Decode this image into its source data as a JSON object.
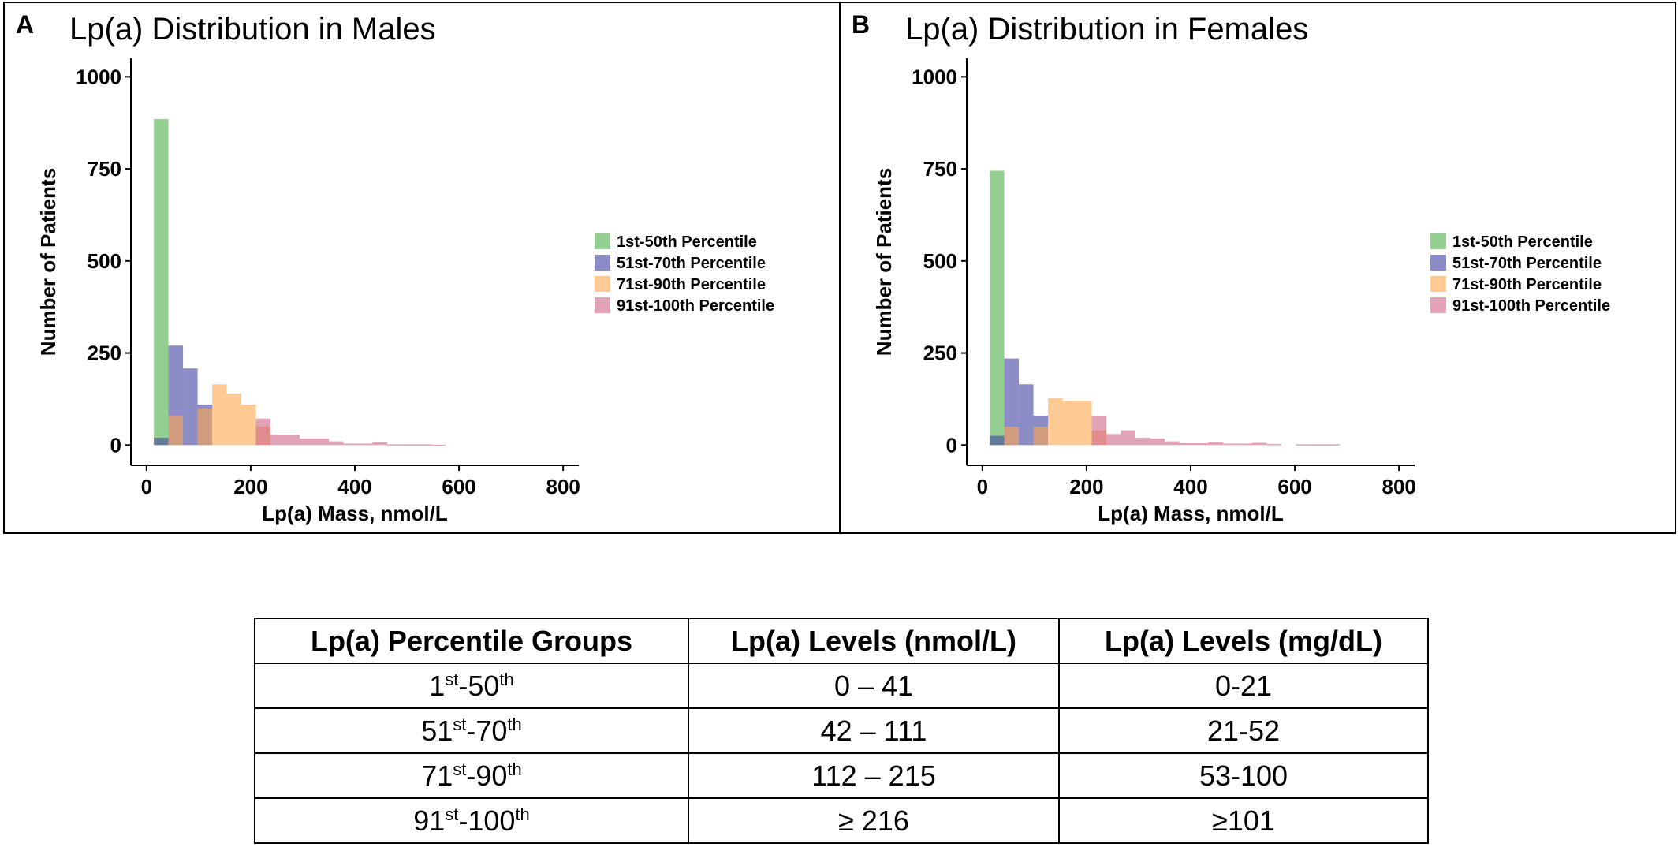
{
  "chart_data": [
    {
      "type": "bar",
      "panel_letter": "A",
      "title": "Lp(a) Distribution in Males",
      "xlabel": "Lp(a) Mass, nmol/L",
      "ylabel": "Number of Patients",
      "xlim": [
        -30,
        830
      ],
      "ylim": [
        -55,
        1050
      ],
      "xticks": [
        0,
        200,
        400,
        600,
        800
      ],
      "yticks": [
        0,
        250,
        500,
        750,
        1000
      ],
      "grid": false,
      "legend_position": "right",
      "bin_width": 28,
      "series": [
        {
          "name": "1st-50th Percentile",
          "color": "#4daf4a",
          "bins": [
            [
              14,
              42,
              885
            ]
          ]
        },
        {
          "name": "51st-70th Percentile",
          "color": "#3f3fa0",
          "bins": [
            [
              14,
              42,
              20
            ],
            [
              42,
              70,
              270
            ],
            [
              70,
              98,
              208
            ],
            [
              98,
              126,
              110
            ]
          ]
        },
        {
          "name": "71st-90th Percentile",
          "color": "#ffa64d",
          "bins": [
            [
              42,
              70,
              80
            ],
            [
              98,
              126,
              100
            ],
            [
              126,
              154,
              165
            ],
            [
              154,
              182,
              140
            ],
            [
              182,
              210,
              110
            ],
            [
              210,
              238,
              50
            ]
          ]
        },
        {
          "name": "91st-100th Percentile",
          "color": "#cc6688",
          "bins": [
            [
              210,
              238,
              72
            ],
            [
              238,
              266,
              28
            ],
            [
              266,
              294,
              28
            ],
            [
              294,
              322,
              18
            ],
            [
              322,
              350,
              18
            ],
            [
              350,
              378,
              10
            ],
            [
              378,
              406,
              4
            ],
            [
              406,
              434,
              4
            ],
            [
              434,
              462,
              8
            ],
            [
              462,
              490,
              2
            ],
            [
              490,
              518,
              2
            ],
            [
              518,
              546,
              2
            ],
            [
              546,
              574,
              1
            ]
          ]
        }
      ]
    },
    {
      "type": "bar",
      "panel_letter": "B",
      "title": "Lp(a) Distribution in Females",
      "xlabel": "Lp(a) Mass, nmol/L",
      "ylabel": "Number of Patients",
      "xlim": [
        -30,
        830
      ],
      "ylim": [
        -55,
        1050
      ],
      "xticks": [
        0,
        200,
        400,
        600,
        800
      ],
      "yticks": [
        0,
        250,
        500,
        750,
        1000
      ],
      "grid": false,
      "legend_position": "right",
      "bin_width": 28,
      "series": [
        {
          "name": "1st-50th Percentile",
          "color": "#4daf4a",
          "bins": [
            [
              14,
              42,
              745
            ]
          ]
        },
        {
          "name": "51st-70th Percentile",
          "color": "#3f3fa0",
          "bins": [
            [
              14,
              42,
              25
            ],
            [
              42,
              70,
              235
            ],
            [
              70,
              98,
              165
            ],
            [
              98,
              126,
              80
            ]
          ]
        },
        {
          "name": "71st-90th Percentile",
          "color": "#ffa64d",
          "bins": [
            [
              42,
              70,
              50
            ],
            [
              98,
              126,
              50
            ],
            [
              126,
              154,
              128
            ],
            [
              154,
              182,
              120
            ],
            [
              182,
              210,
              120
            ],
            [
              210,
              238,
              40
            ]
          ]
        },
        {
          "name": "91st-100th Percentile",
          "color": "#cc6688",
          "bins": [
            [
              210,
              238,
              78
            ],
            [
              238,
              266,
              30
            ],
            [
              266,
              294,
              40
            ],
            [
              294,
              322,
              20
            ],
            [
              322,
              350,
              18
            ],
            [
              350,
              378,
              10
            ],
            [
              378,
              406,
              5
            ],
            [
              406,
              434,
              5
            ],
            [
              434,
              462,
              8
            ],
            [
              462,
              490,
              4
            ],
            [
              490,
              518,
              4
            ],
            [
              518,
              546,
              6
            ],
            [
              546,
              574,
              3
            ],
            [
              602,
              630,
              2
            ],
            [
              630,
              658,
              2
            ],
            [
              658,
              686,
              2
            ]
          ]
        }
      ]
    }
  ],
  "table": {
    "headers": [
      "Lp(a) Percentile Groups",
      "Lp(a) Levels (nmol/L)",
      "Lp(a) Levels (mg/dL)"
    ],
    "rows": [
      {
        "group_a": "1",
        "sup_a": "st",
        "group_b": "-50",
        "sup_b": "th",
        "nmol": "0 – 41",
        "mg": "0-21"
      },
      {
        "group_a": "51",
        "sup_a": "st",
        "group_b": "-70",
        "sup_b": "th",
        "nmol": "42 – 111",
        "mg": "21-52"
      },
      {
        "group_a": "71",
        "sup_a": "st",
        "group_b": "-90",
        "sup_b": "th",
        "nmol": "112 – 215",
        "mg": "53-100"
      },
      {
        "group_a": "91",
        "sup_a": "st",
        "group_b": "-100",
        "sup_b": "th",
        "nmol": "≥ 216",
        "mg": "≥101"
      }
    ]
  }
}
